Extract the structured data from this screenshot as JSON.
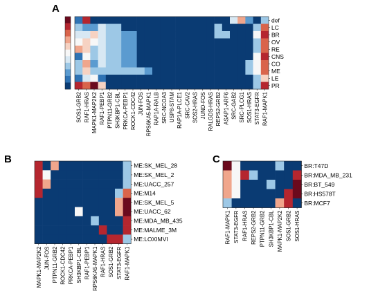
{
  "panels": {
    "A": {
      "letter": "A"
    },
    "B": {
      "letter": "B"
    },
    "C": {
      "letter": "C"
    }
  },
  "colors": {
    "base": "#0a3b73",
    "scale": [
      "#1a4e86",
      "#2f73b4",
      "#5b9bd0",
      "#9dc8e6",
      "#d8e8f3",
      "#f7f7f7",
      "#f6d2c2",
      "#f0a68c",
      "#d9644b",
      "#b5262f",
      "#6b0a1d"
    ]
  },
  "chart_data": [
    {
      "type": "heatmap",
      "panel": "A",
      "value_scale": "0 = dark blue, 0.5 = white, 1 = dark red",
      "colorbar": [
        0,
        0.1,
        0.2,
        0.3,
        0.4,
        0.5,
        0.6,
        0.7,
        0.8,
        0.9,
        1.0
      ],
      "rows": [
        "def",
        "LC",
        "BR",
        "OV",
        "RE",
        "CNS",
        "CO",
        "ME",
        "LE",
        "PR"
      ],
      "columns": [
        "SOS1-GRB2",
        "RAF1-HRAS",
        "MAPK1-MAP2K2",
        "RAF1-PEBP1",
        "PTPN11-GRB2",
        "SH3KBP1-CBL",
        "PRKCA-PEBP1",
        "ROCK1-CDC42",
        "JUN-FOS",
        "RPS6KA5-MAPK1",
        "RAP1A-RALB",
        "SRC-NCOA3",
        "USP8-STAM",
        "RAP1A-PLCE1",
        "SRC-CAV2",
        "SOS2-HRAS",
        "JUND-FOS",
        "RALGDS-HRAS",
        "REPS2-GRB2",
        "ASAP1-ARF6",
        "SRC-GAB2",
        "SRC-PLCG1",
        "SOS1-HRAS",
        "STAT3-EGFR",
        "RAF1-MAPK1"
      ],
      "cells": [
        [
          0.05,
          0.9,
          0,
          0,
          0,
          0,
          0,
          0,
          0,
          0,
          0,
          0,
          0,
          0,
          0,
          0,
          0,
          0,
          0,
          0,
          0.35,
          0.7,
          0.2,
          0,
          0.25
        ],
        [
          0.3,
          0.2,
          0.15,
          0.35,
          0.3,
          0.25,
          0,
          0,
          0,
          0,
          0,
          0,
          0,
          0,
          0,
          0,
          0,
          0,
          0.3,
          0,
          0,
          0,
          0,
          0.3,
          0.8
        ],
        [
          0.35,
          0.35,
          0.6,
          0.35,
          0.3,
          0.25,
          0.2,
          0.2,
          0,
          0,
          0,
          0,
          0,
          0,
          0,
          0,
          0,
          0,
          0.25,
          0.25,
          0,
          0,
          0,
          0.5,
          0.85
        ],
        [
          0.45,
          0.55,
          0.5,
          0.35,
          0.3,
          0.25,
          0.2,
          0.2,
          0,
          0,
          0,
          0,
          0,
          0,
          0,
          0,
          0,
          0,
          0,
          0,
          0,
          0,
          0,
          0.3,
          0.75
        ],
        [
          0.7,
          0.6,
          0.25,
          0.35,
          0.3,
          0.25,
          0.2,
          0.2,
          0,
          0,
          0,
          0,
          0,
          0,
          0,
          0,
          0,
          0,
          0,
          0,
          0,
          0,
          0,
          0.3,
          0.8
        ],
        [
          0.1,
          0.5,
          0.3,
          0.35,
          0.3,
          0.25,
          0.2,
          0.2,
          0,
          0,
          0,
          0,
          0,
          0,
          0,
          0,
          0,
          0,
          0,
          0,
          0,
          0,
          0,
          0.45,
          0.9
        ],
        [
          0.3,
          0.7,
          0.2,
          0.35,
          0.3,
          0.25,
          0.2,
          0.2,
          0,
          0,
          0,
          0,
          0,
          0,
          0,
          0,
          0,
          0,
          0,
          0,
          0,
          0,
          0.25,
          0.45,
          0.75
        ],
        [
          0.25,
          0.6,
          0.25,
          0.3,
          0.25,
          0.25,
          0.25,
          0.25,
          0.25,
          0.2,
          0,
          0,
          0,
          0,
          0,
          0,
          0,
          0,
          0,
          0,
          0,
          0,
          0.25,
          0.45,
          0.8
        ],
        [
          0.05,
          0.4,
          0.5,
          0.1,
          0,
          0,
          0,
          0,
          0,
          0,
          0,
          0,
          0,
          0,
          0,
          0,
          0,
          0,
          0,
          0,
          0,
          0,
          0,
          0.3,
          0.6
        ],
        [
          0.85,
          0.75,
          0.95,
          0.55,
          0,
          0,
          0,
          0,
          0,
          0,
          0,
          0,
          0,
          0,
          0,
          0,
          0,
          0,
          0,
          0,
          0,
          0,
          0,
          0.3,
          0.9
        ]
      ]
    },
    {
      "type": "heatmap",
      "panel": "B",
      "rows": [
        "ME:SK_MEL_28",
        "ME:SK_MEL_2",
        "ME:UACC_257",
        "ME:M14",
        "ME:SK_MEL_5",
        "ME:UACC_62",
        "ME:MDA_MB_435",
        "ME:MALME_3M",
        "ME:LOXIMVI"
      ],
      "columns": [
        "MAPK1-MAP2K2",
        "JUN-FOS",
        "PTPN11-GRB2",
        "ROCK1-CDC42",
        "PRKCA-PEBP1",
        "SH3KBP1-CBL",
        "RAF1-PEBP1",
        "RPS6KA5-MAPK1",
        "RAF1-HRAS",
        "SOS1-GRB2",
        "STAT3-EGFR",
        "RAF1-MAPK1"
      ],
      "cells": [
        [
          0.9,
          0,
          0.65,
          0,
          0,
          0,
          0,
          0,
          0,
          0,
          0,
          0.3
        ],
        [
          0.9,
          0.5,
          0,
          0,
          0,
          0,
          0,
          0,
          0,
          0,
          0,
          0.3
        ],
        [
          0.9,
          0.65,
          0,
          0,
          0,
          0,
          0,
          0,
          0,
          0,
          0,
          0.3
        ],
        [
          0.9,
          0,
          0,
          0,
          0,
          0,
          0,
          0,
          0,
          0,
          0.3,
          0.8
        ],
        [
          0,
          0,
          0,
          0,
          0,
          0,
          0,
          0,
          0,
          0,
          0.7,
          0.95
        ],
        [
          0,
          0,
          0,
          0,
          0,
          0.5,
          0,
          0,
          0,
          0,
          0.7,
          0.95
        ],
        [
          0,
          0,
          0,
          0,
          0,
          0,
          0,
          0.3,
          0,
          0,
          0,
          0.9
        ],
        [
          0,
          0,
          0,
          0,
          0,
          0,
          0,
          0,
          0.9,
          0,
          0,
          0.9
        ],
        [
          0,
          0,
          0,
          0,
          0,
          0,
          0,
          0,
          0,
          0.9,
          0.9,
          0.3
        ]
      ]
    },
    {
      "type": "heatmap",
      "panel": "C",
      "rows": [
        "BR:T47D",
        "BR:MDA_MB_231",
        "BR:BT_549",
        "BR:HS578T",
        "BR:MCF7"
      ],
      "columns": [
        "RAF1-MAPK1",
        "STAT3-EGFR",
        "RAF1-HRAS",
        "REPS2-GRB2",
        "PTPN11-GRB2",
        "SH3KBP1-CBL",
        "MAPK1-MAP2K2",
        "SOS1-GRB2",
        "SOS1-HRAS"
      ],
      "cells": [
        [
          0.95,
          0.5,
          0,
          0,
          0,
          0,
          0.3,
          0,
          0
        ],
        [
          0.7,
          0.5,
          0.9,
          0.3,
          0,
          0,
          0,
          0,
          0.9
        ],
        [
          0.7,
          0.5,
          0,
          0,
          0,
          0.3,
          0,
          0,
          0.95
        ],
        [
          0.7,
          0.5,
          0,
          0,
          0,
          0,
          0,
          0.9,
          0.95
        ],
        [
          0.3,
          0,
          0,
          0,
          0,
          0,
          0.65,
          0.85,
          0
        ]
      ]
    }
  ]
}
